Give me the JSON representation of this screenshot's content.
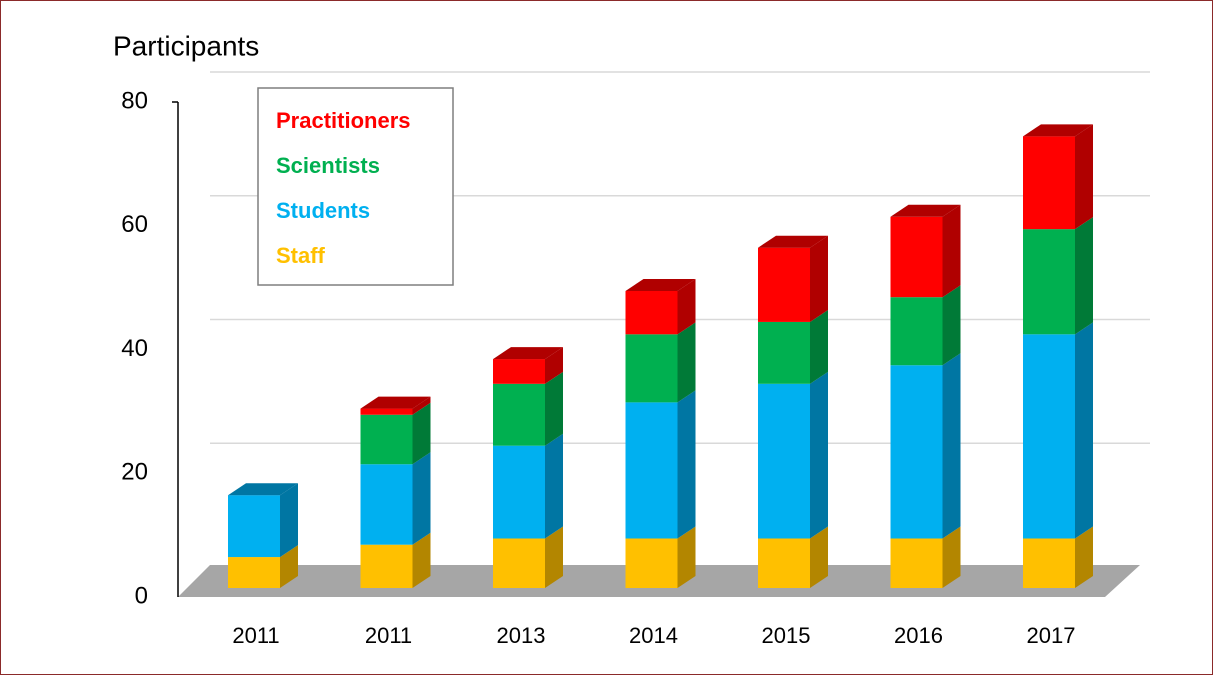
{
  "chart_data": {
    "type": "bar3d_stacked",
    "title": "Participants",
    "categories": [
      "2011",
      "2011",
      "2013",
      "2014",
      "2015",
      "2016",
      "2017"
    ],
    "series": [
      {
        "name": "Staff",
        "color": "#ffc000",
        "side": "#b38600",
        "values": [
          5,
          7,
          8,
          8,
          8,
          8,
          8
        ]
      },
      {
        "name": "Students",
        "color": "#00b0f0",
        "side": "#0076a3",
        "values": [
          10,
          13,
          15,
          22,
          25,
          28,
          33
        ]
      },
      {
        "name": "Scientists",
        "color": "#00b050",
        "side": "#007a37",
        "values": [
          0,
          8,
          10,
          11,
          10,
          11,
          17
        ]
      },
      {
        "name": "Practitioners",
        "color": "#ff0000",
        "side": "#b00000",
        "values": [
          0,
          1,
          4,
          7,
          12,
          13,
          15
        ]
      }
    ],
    "ylim": [
      0,
      80
    ],
    "yticks": [
      0,
      20,
      40,
      60,
      80
    ],
    "grid": true
  }
}
